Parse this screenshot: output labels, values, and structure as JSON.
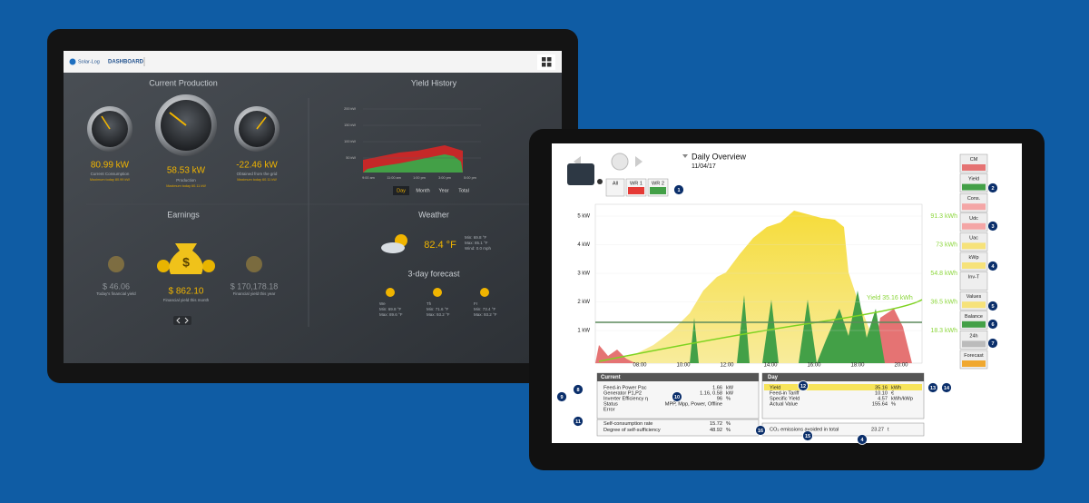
{
  "dashboard": {
    "header": {
      "logo": "Solar-Log",
      "title": "DASHBOARD"
    },
    "current_production": {
      "title": "Current Production",
      "gauges": [
        {
          "value": "80.99 kW",
          "label": "Current Consumption",
          "sub": "Maximum today 80.99 kW"
        },
        {
          "value": "58.53 kW",
          "label": "Production",
          "sub": "Maximum today 60.11 kW"
        },
        {
          "value": "-22.46 kW",
          "label": "Obtained from the grid",
          "sub": "Maximum today 60.11 kW"
        }
      ]
    },
    "yield_history": {
      "title": "Yield History",
      "y_labels": [
        "200 kW",
        "150 kW",
        "100 kW",
        "50 kW"
      ],
      "x_labels": [
        "9:00 am",
        "11:00 am",
        "1:00 pm",
        "3:00 pm",
        "5:00 pm"
      ],
      "tabs": [
        "Day",
        "Month",
        "Year",
        "Total"
      ]
    },
    "earnings": {
      "title": "Earnings",
      "items": [
        {
          "value": "$ 46.06",
          "label": "Today's financial yield"
        },
        {
          "value": "$ 862.10",
          "label": "Financial yield this month"
        },
        {
          "value": "$ 170,178.18",
          "label": "Financial yield this year"
        }
      ]
    },
    "weather": {
      "title": "Weather",
      "temperature": "82.4 °F",
      "details": [
        "Min: 69.8 °F",
        "Max: 85.1 °F",
        "Wind: 0.0 mph"
      ]
    },
    "forecast": {
      "title": "3-day forecast",
      "days": [
        {
          "day": "We",
          "min": "Min: 69.8 °F",
          "max": "Max: 89.6 °F"
        },
        {
          "day": "Th",
          "min": "Min: 71.6 °F",
          "max": "Max: 93.2 °F"
        },
        {
          "day": "Fr",
          "min": "Min: 73.4 °F",
          "max": "Max: 93.2 °F"
        }
      ]
    }
  },
  "daily_overview": {
    "title": "Daily Overview",
    "date": "11/04/17",
    "filters": [
      "All",
      "WR 1",
      "WR 2"
    ],
    "chart": {
      "y_labels": [
        "5 kW",
        "4 kW",
        "3 kW",
        "2 kW",
        "1 kW"
      ],
      "x_labels": [
        "08:00",
        "10:00",
        "12:00",
        "14:00",
        "16:00",
        "18:00",
        "20:00"
      ],
      "right_labels": [
        "91.3 kWh",
        "73 kWh",
        "54.8 kWh",
        "36.5 kWh",
        "18.3 kWh"
      ],
      "annotation": "Yield 35.16 kWh"
    },
    "side_buttons": [
      "CM",
      "Yield",
      "Cons.",
      "Udc",
      "Uac",
      "kWp",
      "Inv-T",
      "Values",
      "Balance",
      "24h",
      "Forecast"
    ],
    "current": {
      "title": "Current",
      "rows": [
        {
          "label": "Feed-in Power Pac",
          "value": "1.66",
          "unit": "kW"
        },
        {
          "label": "Generator P1,P2",
          "value": "1.16, 0.58",
          "unit": "kW"
        },
        {
          "label": "Inverter Efficiency η",
          "value": "96",
          "unit": "%"
        },
        {
          "label": "Status",
          "value": "MPP, Mpp, Power, Offline"
        },
        {
          "label": "Error"
        }
      ],
      "summary": [
        {
          "label": "Self-consumption rate",
          "value": "15.72",
          "unit": "%"
        },
        {
          "label": "Degree of self-sufficiency",
          "value": "48.92",
          "unit": "%"
        }
      ]
    },
    "day": {
      "title": "Day",
      "rows": [
        {
          "label": "Yield",
          "value": "35.16",
          "unit": "kWh"
        },
        {
          "label": "Feed-in Tariff",
          "value": "10.10",
          "unit": "€"
        },
        {
          "label": "Specific Yield",
          "value": "4.57",
          "unit": "kWh/kWp"
        },
        {
          "label": "Actual Value",
          "value": "155.64",
          "unit": "%"
        }
      ],
      "co2": {
        "label": "CO₂ emissions avoided in total",
        "value": "23.27",
        "unit": "t"
      }
    },
    "callouts": [
      "1",
      "2",
      "3",
      "4",
      "5",
      "6",
      "7",
      "8",
      "9",
      "10",
      "11",
      "12",
      "13",
      "14",
      "15",
      "16",
      "4"
    ]
  }
}
